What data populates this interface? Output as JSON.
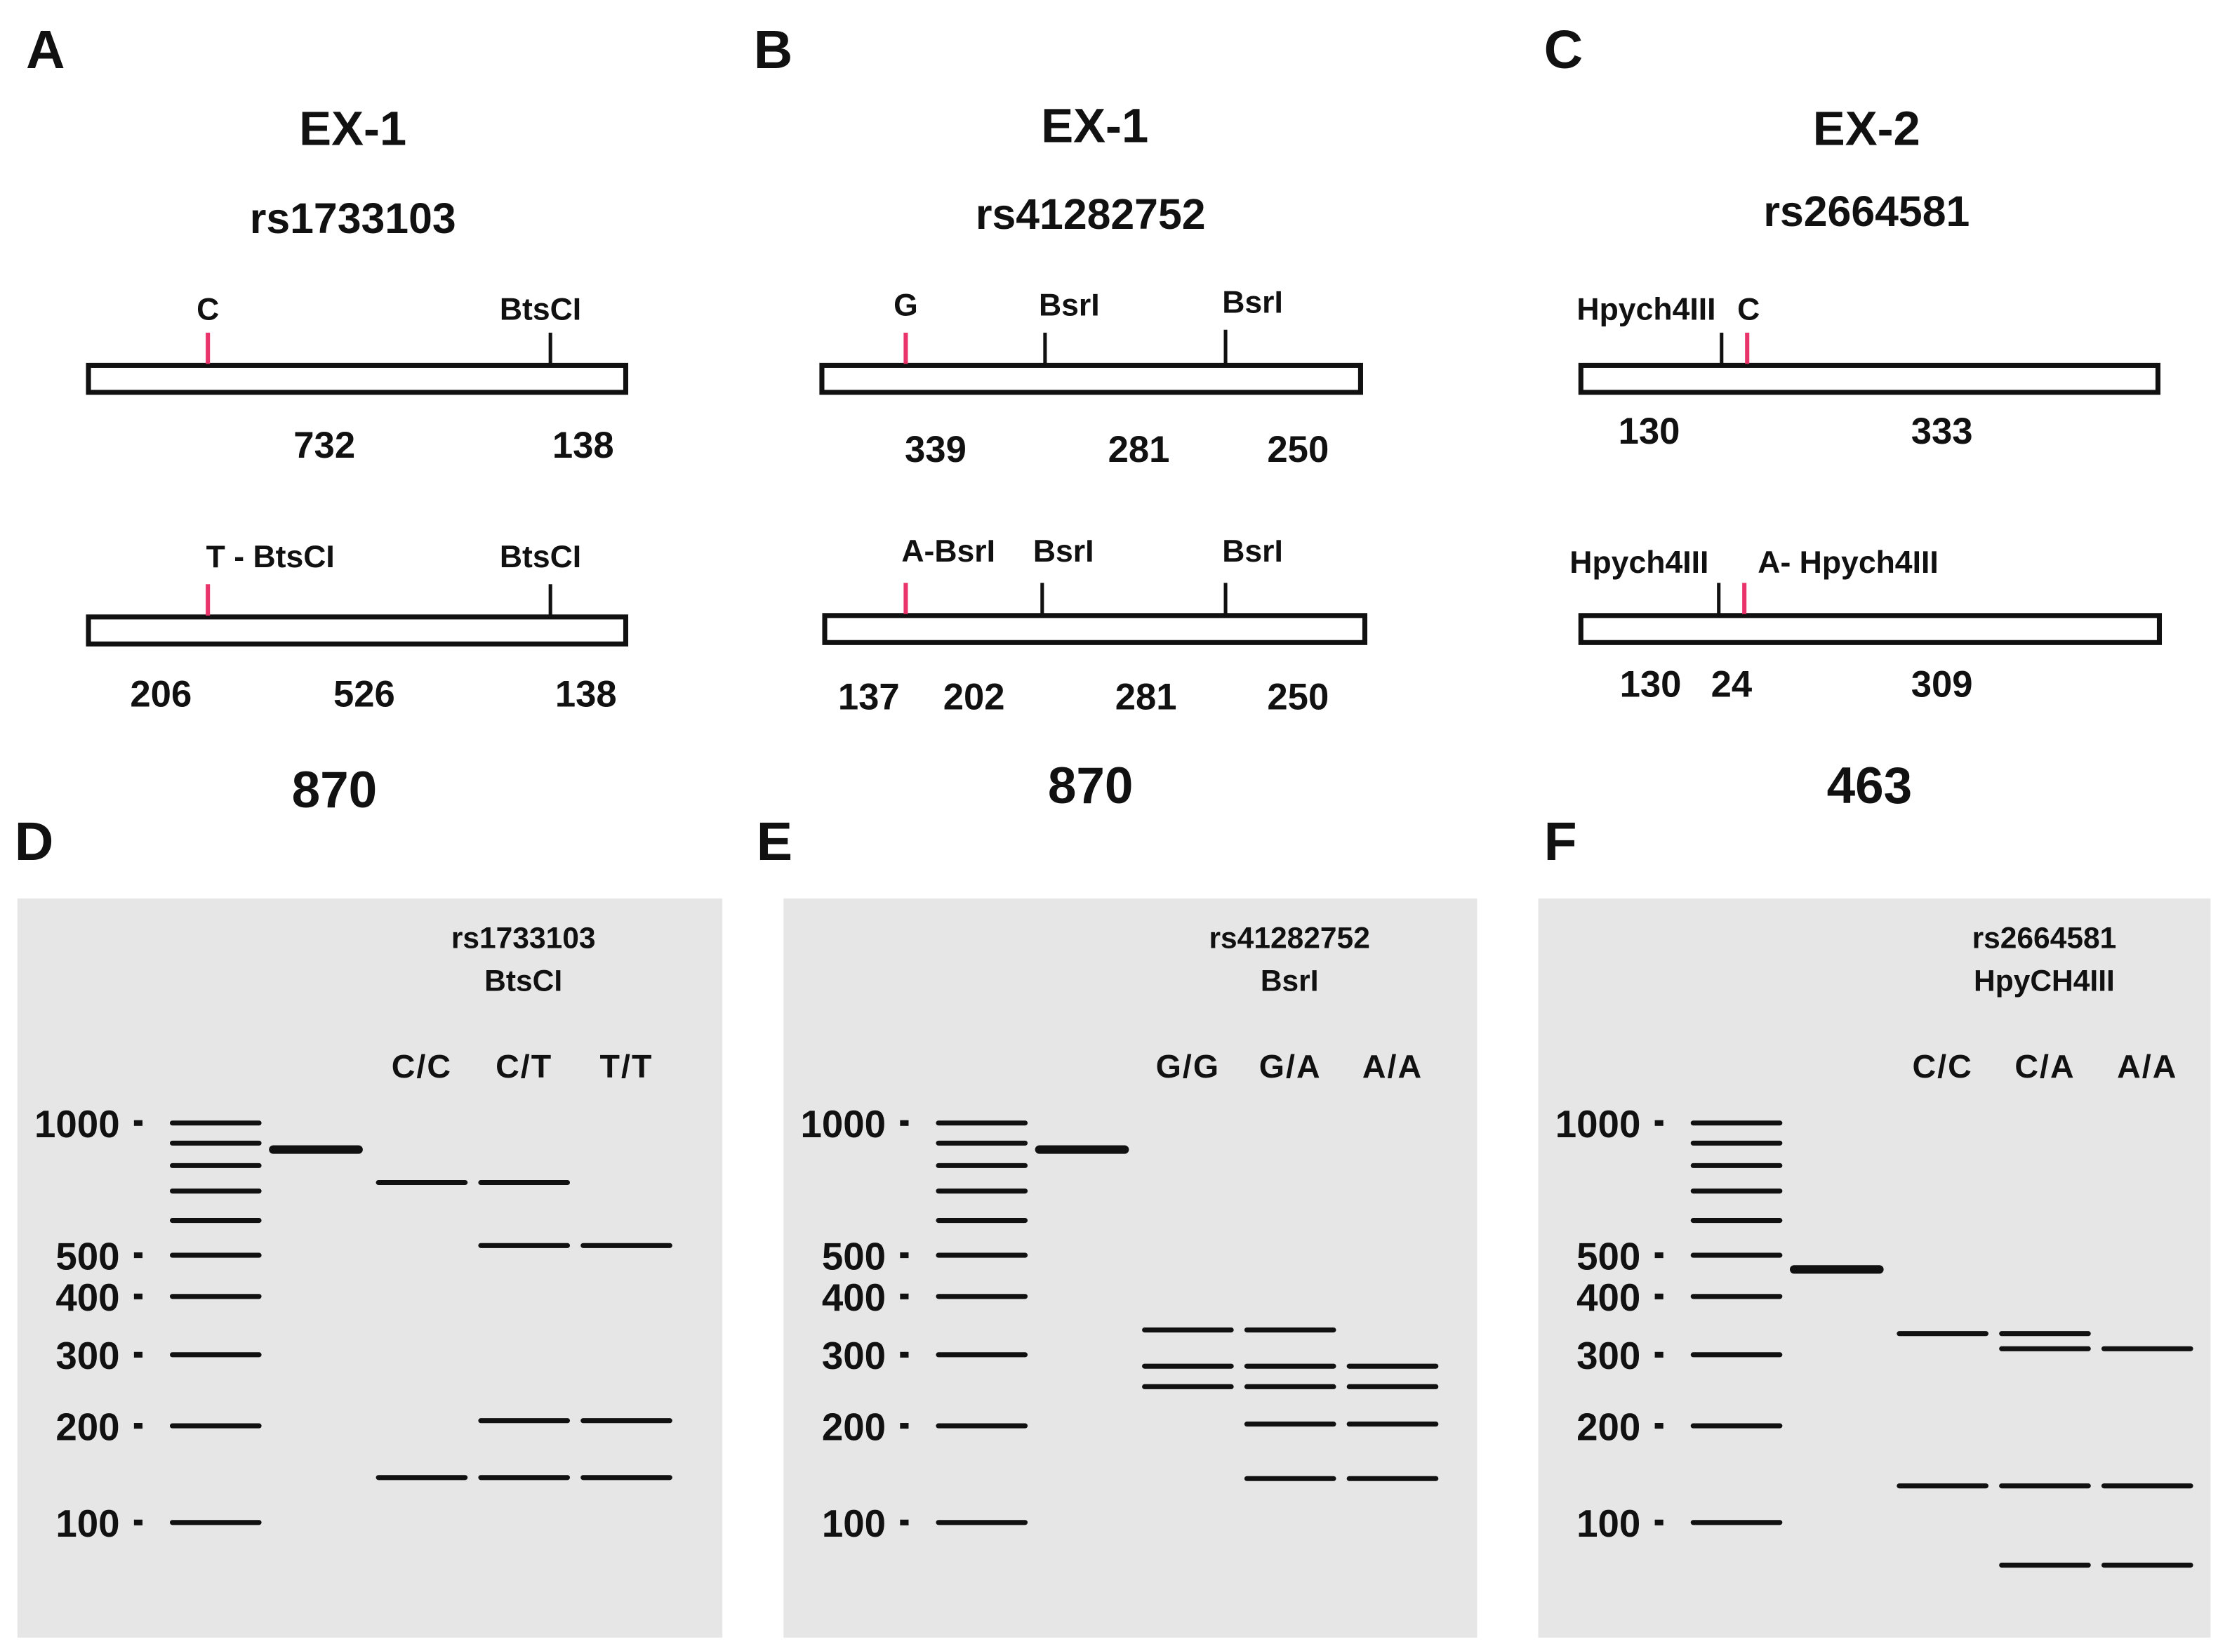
{
  "panels": [
    {
      "letter": "A",
      "exon": "EX-1",
      "snp": "rs1733103",
      "total": "870",
      "allele1": {
        "site_labels": [
          "C",
          "BtsCI"
        ],
        "fragments": [
          "732",
          "138"
        ]
      },
      "allele2": {
        "site_labels": [
          "T - BtsCI",
          "BtsCI"
        ],
        "fragments": [
          "206",
          "526",
          "138"
        ]
      }
    },
    {
      "letter": "B",
      "exon": "EX-1",
      "snp": "rs41282752",
      "total": "870",
      "allele1": {
        "site_labels": [
          "G",
          "BsrI",
          "BsrI"
        ],
        "fragments": [
          "339",
          "281",
          "250"
        ]
      },
      "allele2": {
        "site_labels": [
          "A-BsrI",
          "BsrI",
          "BsrI"
        ],
        "fragments": [
          "137",
          "202",
          "281",
          "250"
        ]
      }
    },
    {
      "letter": "C",
      "exon": "EX-2",
      "snp": "rs2664581",
      "total": "463",
      "allele1": {
        "site_labels": [
          "Hpych4III",
          "C"
        ],
        "fragments": [
          "130",
          "333"
        ]
      },
      "allele2": {
        "site_labels": [
          "Hpych4III",
          "A- Hpych4III"
        ],
        "fragments": [
          "130",
          "24",
          "309"
        ]
      }
    }
  ],
  "gels": [
    {
      "letter": "D",
      "snp": "rs1733103",
      "enzyme": "BtsCI",
      "genotypes": [
        "C/C",
        "C/T",
        "T/T"
      ],
      "uncut_bp": 870,
      "lanes_bp": [
        [
          732,
          138
        ],
        [
          732,
          526,
          206,
          138
        ],
        [
          526,
          206,
          138
        ]
      ]
    },
    {
      "letter": "E",
      "snp": "rs41282752",
      "enzyme": "BsrI",
      "genotypes": [
        "G/G",
        "G/A",
        "A/A"
      ],
      "uncut_bp": 870,
      "lanes_bp": [
        [
          339,
          281,
          250
        ],
        [
          339,
          281,
          250,
          202,
          137
        ],
        [
          281,
          250,
          202,
          137
        ]
      ]
    },
    {
      "letter": "F",
      "snp": "rs2664581",
      "enzyme": "HpyCH4III",
      "genotypes": [
        "C/C",
        "C/A",
        "A/A"
      ],
      "uncut_bp": 463,
      "lanes_bp": [
        [
          333,
          130
        ],
        [
          333,
          309,
          130,
          24
        ],
        [
          309,
          130,
          24
        ]
      ]
    }
  ],
  "ladder": {
    "labels": [
      "1000",
      "500",
      "400",
      "300",
      "200",
      "100"
    ],
    "bands_bp": [
      1000,
      900,
      800,
      700,
      600,
      500,
      400,
      300,
      200,
      100
    ]
  },
  "colors": {
    "snp_site": "#e8336b",
    "restriction_site": "#111111",
    "gel_background": "#e6e6e6",
    "band": "#111111"
  }
}
